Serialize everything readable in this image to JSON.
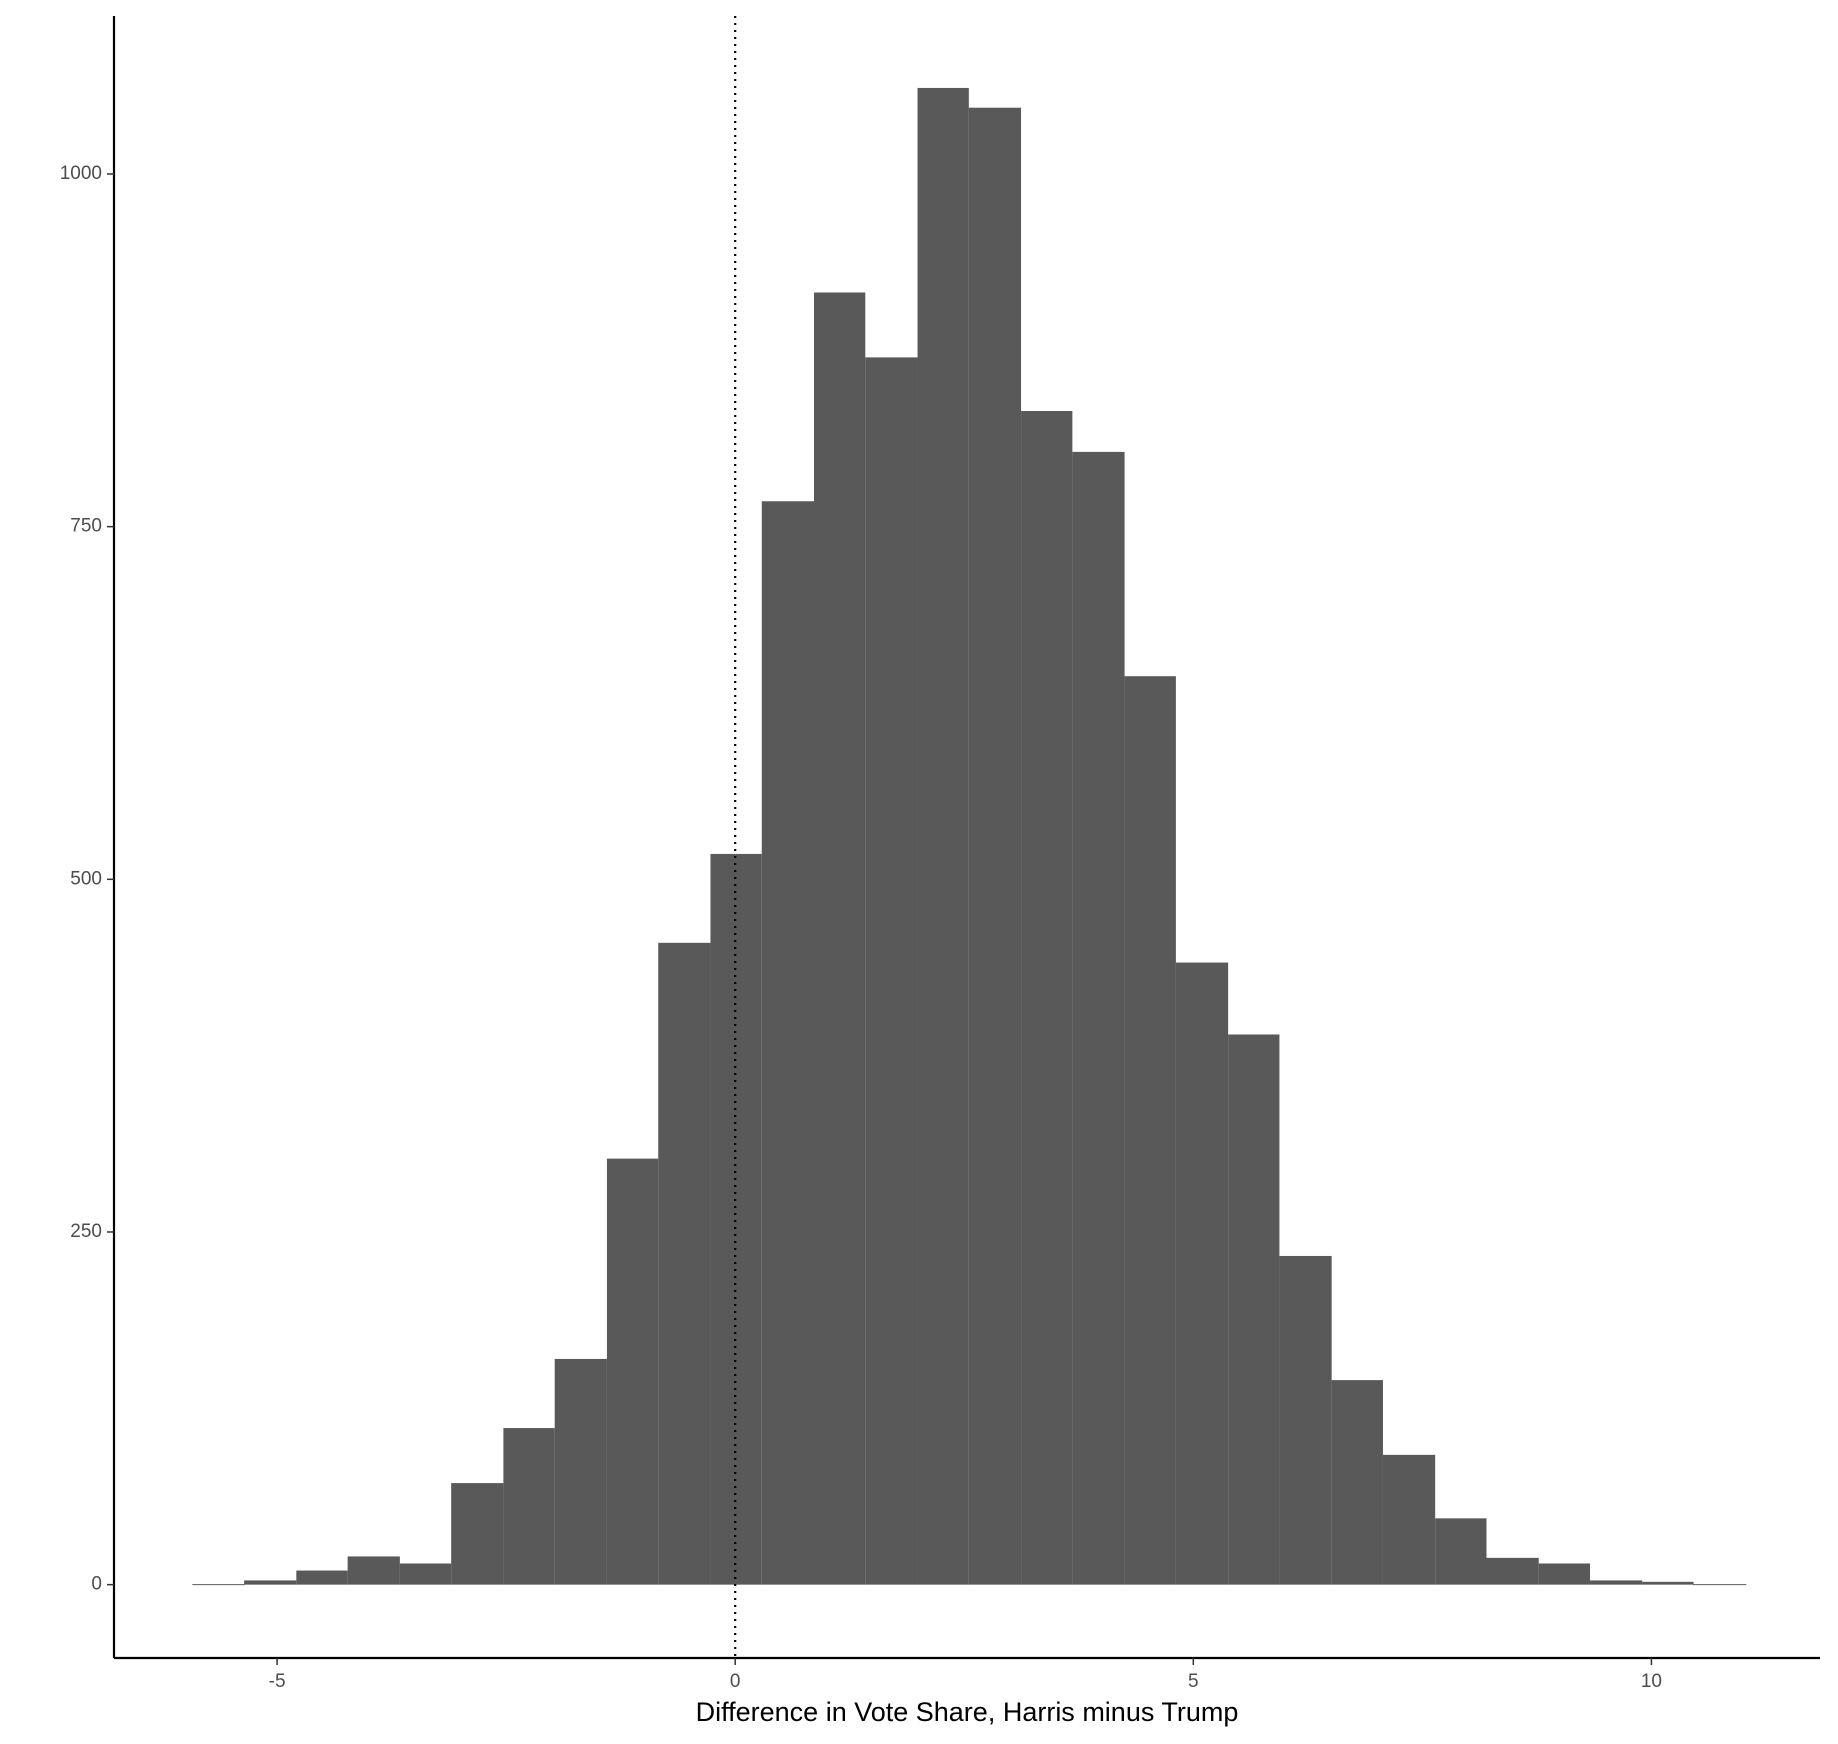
{
  "chart_data": {
    "type": "histogram",
    "x_label": "Difference in Vote Share, Harris minus Trump",
    "bins": [
      -5.92,
      -5.36,
      -4.79,
      -4.23,
      -3.66,
      -3.1,
      -2.53,
      -1.97,
      -1.4,
      -0.84,
      -0.27,
      0.29,
      0.86,
      1.42,
      1.99,
      2.55,
      3.12,
      3.68,
      4.25,
      4.81,
      5.38,
      5.94,
      6.51,
      7.07,
      7.64,
      8.2,
      8.77,
      9.33,
      9.9,
      10.46,
      11.03
    ],
    "values": [
      0,
      3,
      10,
      20,
      15,
      72,
      111,
      160,
      302,
      455,
      518,
      768,
      916,
      870,
      1061,
      1047,
      832,
      803,
      644,
      441,
      390,
      233,
      145,
      92,
      47,
      19,
      15,
      3,
      2,
      0
    ],
    "color": "#595959",
    "vline": 0,
    "xlim": [
      -6.78,
      11.84
    ],
    "xticks": [
      -5,
      0,
      5,
      10
    ],
    "ylim": [
      -52,
      1112
    ],
    "yticks": [
      0,
      250,
      500,
      750,
      1000
    ],
    "grid": false
  }
}
